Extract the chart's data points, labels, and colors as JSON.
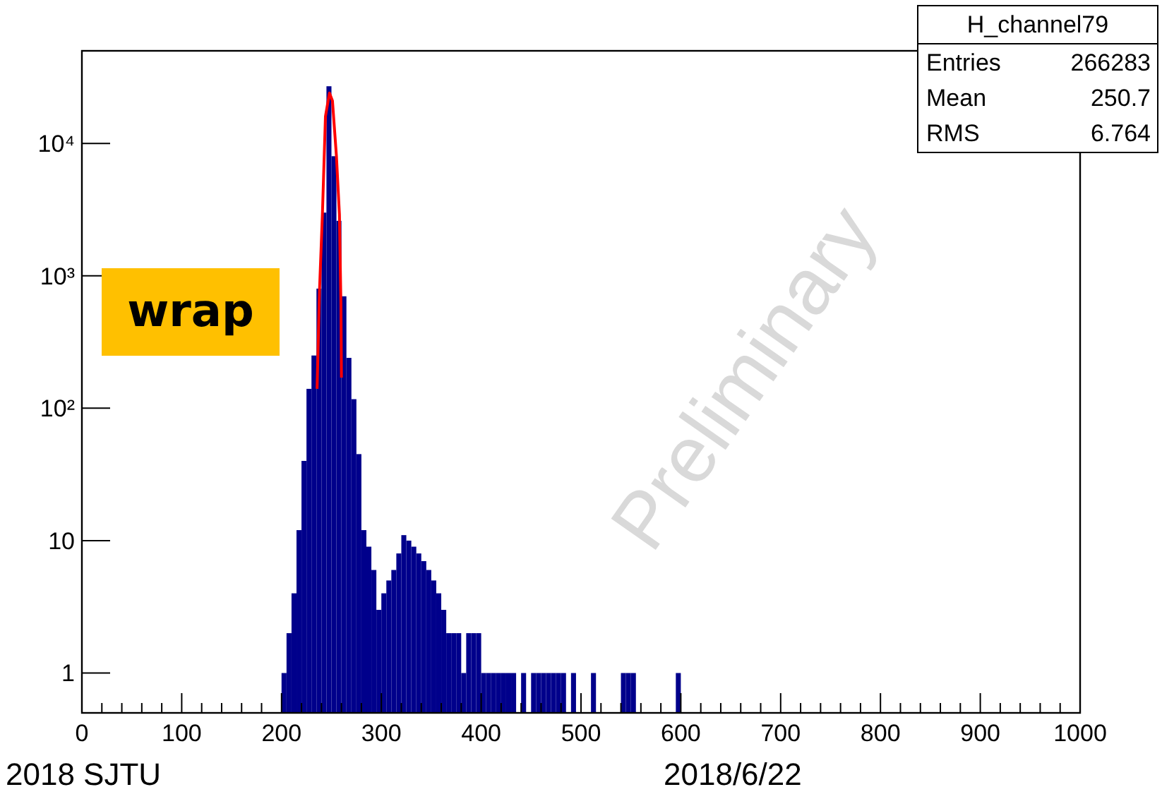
{
  "chart_data": {
    "type": "histogram",
    "log": "y",
    "color": "#00008b",
    "bins": [
      200,
      205,
      210,
      215,
      220,
      225,
      230,
      235,
      240,
      245,
      250,
      255,
      260,
      265,
      270,
      275,
      280,
      285,
      290,
      295,
      300,
      305,
      310,
      315,
      320,
      325,
      330,
      335,
      340,
      345,
      350,
      355,
      360,
      365,
      370,
      375,
      380,
      385,
      390,
      395,
      400,
      405,
      410,
      415,
      420,
      425,
      430,
      435,
      440,
      445,
      450,
      455,
      460,
      465,
      470,
      475,
      480,
      485,
      490,
      495,
      500,
      505,
      510,
      515,
      520,
      525,
      530,
      535,
      540,
      545,
      550,
      555,
      560,
      565,
      570,
      575,
      580,
      585,
      590,
      595,
      600,
      605
    ],
    "values": [
      1,
      2,
      4,
      12,
      40,
      140,
      250,
      800,
      3000,
      27000,
      8000,
      2600,
      700,
      240,
      117,
      45,
      12,
      9,
      6,
      3,
      4,
      5,
      6,
      8,
      11,
      10,
      9,
      8,
      7,
      6,
      5,
      4,
      3,
      2,
      2,
      2,
      1,
      2,
      2,
      2,
      1,
      1,
      1,
      1,
      1,
      1,
      1,
      null,
      1,
      null,
      1,
      1,
      1,
      1,
      1,
      1,
      1,
      null,
      1,
      null,
      null,
      null,
      1,
      null,
      null,
      null,
      null,
      null,
      1,
      1,
      1,
      null,
      null,
      null,
      null,
      null,
      null,
      null,
      null,
      1,
      null
    ],
    "series": [
      {
        "type": "line",
        "color": "#ff0000",
        "x": [
          235.6,
          238,
          241,
          244,
          248,
          251,
          255,
          258,
          259.5,
          260
        ],
        "values": [
          140,
          760,
          3000,
          16000,
          24000,
          21000,
          8000,
          2900,
          600,
          170
        ]
      }
    ],
    "xlim": [
      0,
      1000
    ],
    "xticks": [
      0,
      100,
      200,
      300,
      400,
      500,
      600,
      700,
      800,
      900,
      1000
    ],
    "ylim": [
      0.5,
      50000
    ],
    "yticks": [
      1,
      10,
      {
        "value": 100,
        "label": "10²"
      },
      {
        "value": 1000,
        "label": "10³"
      },
      {
        "value": 10000,
        "label": "10⁴"
      }
    ],
    "annotations": [
      "H_channel79",
      "Entries",
      "266283",
      "Mean",
      "250.7",
      "RMS",
      "6.764",
      "Preliminary",
      "wrap",
      "2018 SJTU",
      "2018/6/22"
    ]
  }
}
